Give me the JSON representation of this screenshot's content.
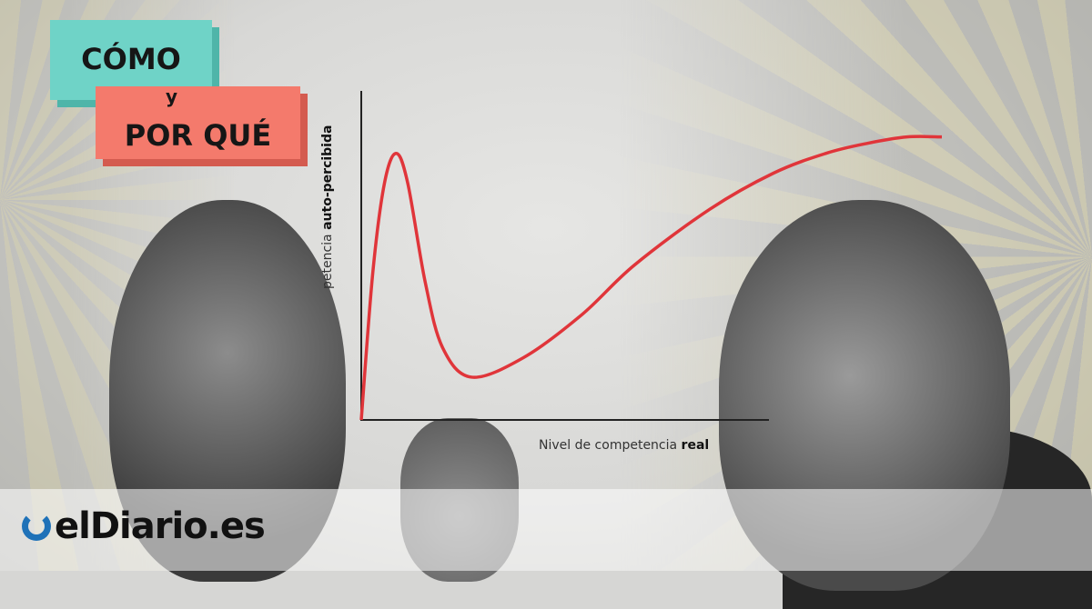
{
  "badge": {
    "line1": "CÓMO",
    "connector": "y",
    "line2": "POR QUÉ",
    "colors": {
      "teal": "#6fd3c7",
      "salmon": "#f47a6c"
    }
  },
  "logo": {
    "text": "elDiario.es",
    "color": "#1f72b8"
  },
  "chart_data": {
    "type": "line",
    "title": "",
    "ylabel_regular": "petencia",
    "ylabel_bold": "auto-percibida",
    "xlabel_regular": "Nivel de competencia",
    "xlabel_bold": "real",
    "xlim": [
      0,
      100
    ],
    "ylim": [
      0,
      100
    ],
    "grid": false,
    "line_color": "#e0353a",
    "x": [
      0,
      2,
      4,
      6,
      8,
      11,
      14,
      19,
      28,
      38,
      47,
      60,
      71,
      80,
      87,
      94,
      100
    ],
    "y": [
      0,
      45,
      72,
      81,
      72,
      42,
      22,
      13,
      19,
      32,
      47,
      64,
      75,
      81,
      84,
      86,
      86
    ]
  }
}
